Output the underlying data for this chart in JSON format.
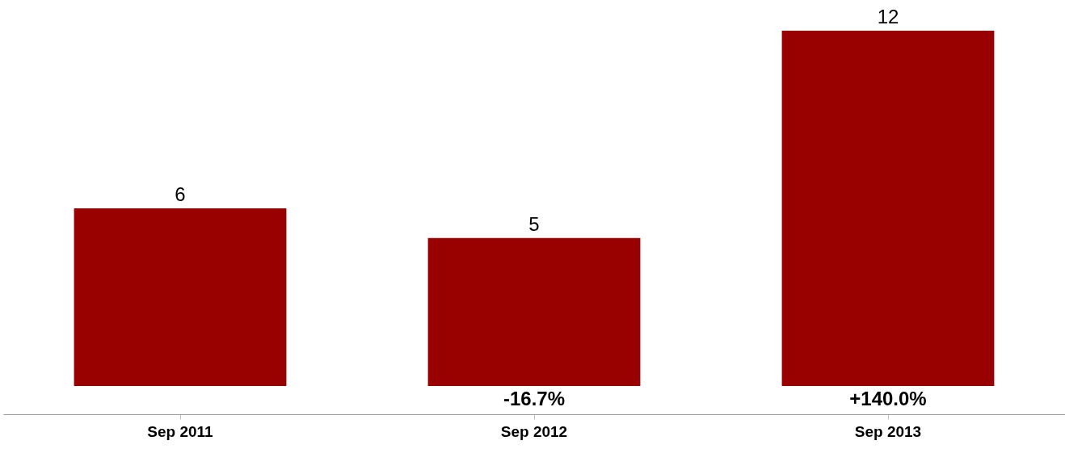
{
  "chart_data": {
    "type": "bar",
    "categories": [
      "Sep 2011",
      "Sep 2012",
      "Sep 2013"
    ],
    "values": [
      6,
      5,
      12
    ],
    "color": "#990000",
    "data_labels": true,
    "grid": false,
    "annotations": [
      "-16.7%",
      "+140.0%"
    ]
  }
}
